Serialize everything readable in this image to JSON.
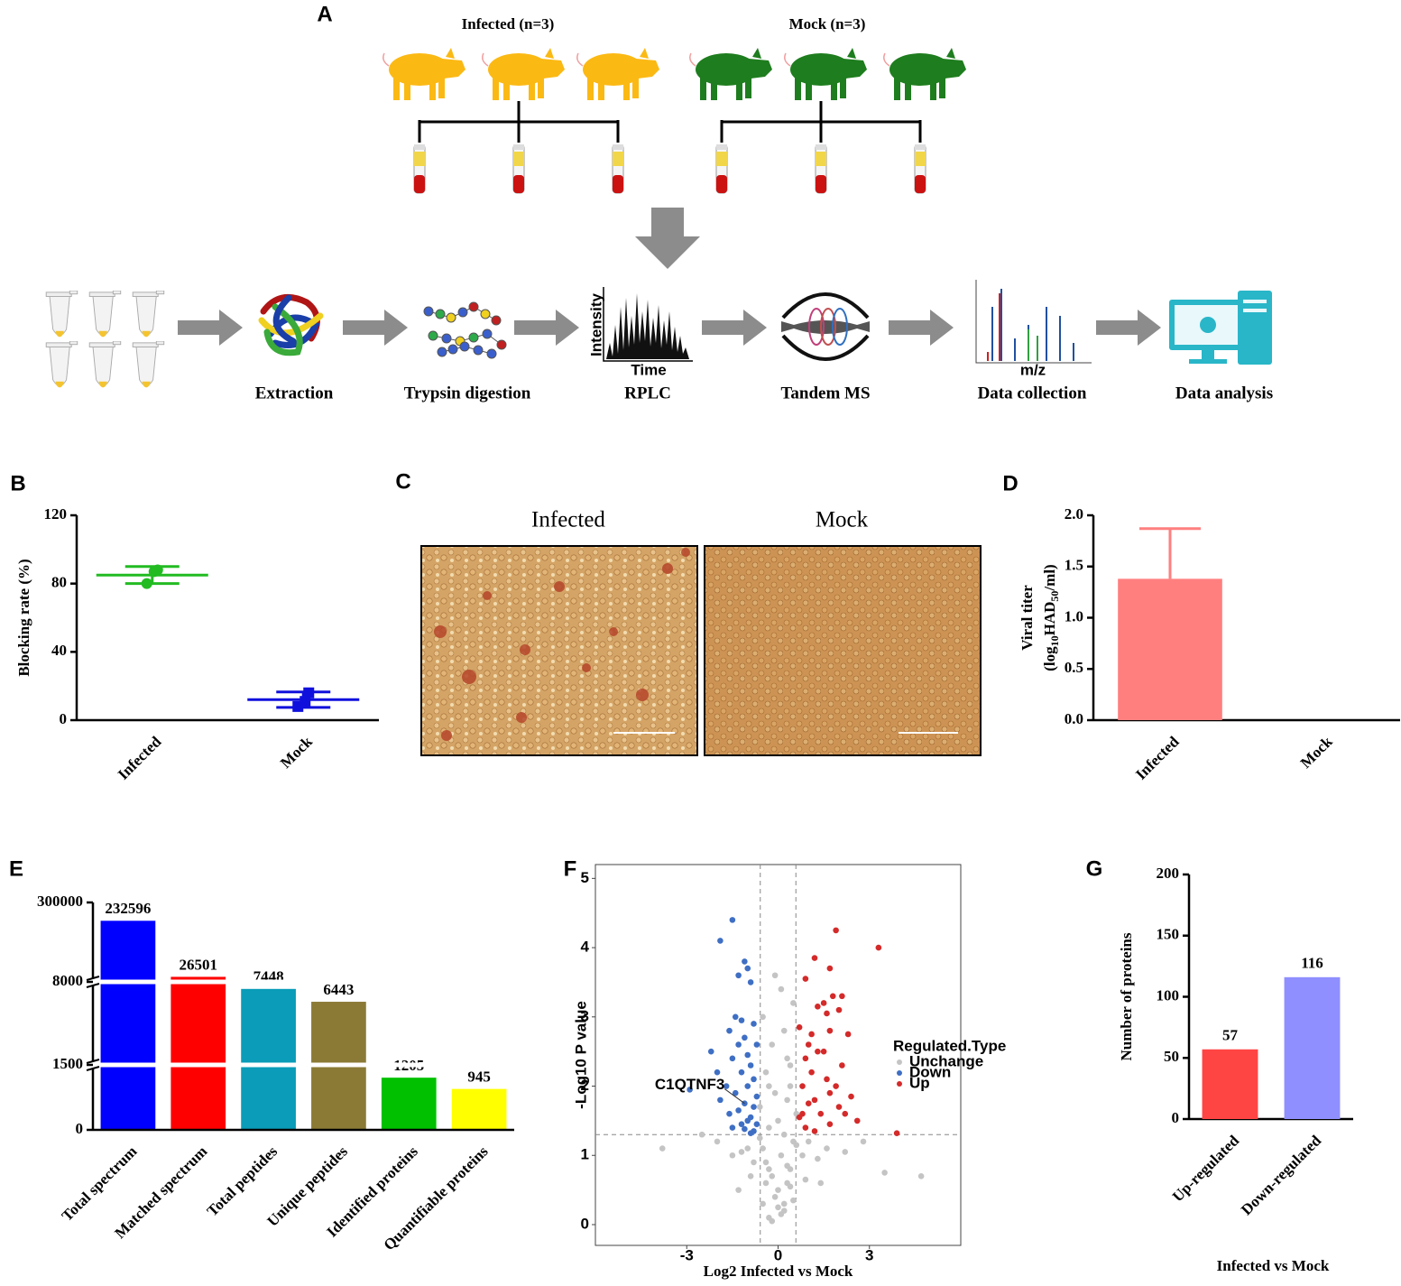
{
  "diagram": {
    "label": "A",
    "groups": [
      "Infected (n=3)",
      "Mock (n=3)"
    ],
    "steps": [
      "Extraction",
      "Trypsin digestion",
      "RPLC",
      "Tandem MS",
      "Data collection",
      "Data analysis"
    ],
    "rplc_axes": [
      "Intensity",
      "Time"
    ],
    "spectrum_axis": "m/z"
  },
  "images": {
    "label": "C",
    "titles": [
      "Infected",
      "Mock"
    ]
  },
  "chart_data": [
    {
      "type": "dot",
      "label": "B",
      "ylabel": "Blocking rate (%)",
      "categories": [
        "Infected",
        "Mock"
      ],
      "points": [
        [
          88,
          87,
          80
        ],
        [
          16,
          11,
          8
        ]
      ],
      "mean": [
        85,
        12
      ],
      "sd": [
        5,
        4.5
      ],
      "colors": [
        "#22bb22",
        "#1010dd"
      ],
      "markers": [
        "circle",
        "square"
      ],
      "ylim": [
        0,
        120
      ],
      "yticks": [
        0,
        40,
        80,
        120
      ]
    },
    {
      "type": "bar",
      "label": "D",
      "ylabel": [
        "Viral titer",
        [
          "(log",
          "10",
          "HAD",
          "50",
          "/ml)"
        ]
      ],
      "categories": [
        "Infected",
        "Mock"
      ],
      "values": [
        1.38,
        0
      ],
      "errors": [
        0.49,
        0
      ],
      "color": "#ff7f7f",
      "ylim": [
        0,
        2
      ],
      "yticks": [
        {
          "value": 0,
          "label": "0.0"
        },
        {
          "value": 0.5,
          "label": "0.5"
        },
        {
          "value": 1,
          "label": "1.0"
        },
        {
          "value": 1.5,
          "label": "1.5"
        },
        {
          "value": 2,
          "label": "2.0"
        }
      ]
    },
    {
      "type": "broken-bar",
      "label": "E",
      "categories": [
        "Total spectrum",
        "Matched spectrum",
        "Total peptides",
        "Unique peptides",
        "Identified proteins",
        "Quantifiable proteins"
      ],
      "values": [
        232596,
        26501,
        7448,
        6443,
        1205,
        945
      ],
      "colors": [
        "#0000ff",
        "#ff0000",
        "#0a9cb8",
        "#8b7a36",
        "#00c000",
        "#ffff00"
      ],
      "data_labels": true,
      "ylim": [
        0,
        300000
      ],
      "yticks": [
        0,
        1500,
        8000,
        300000
      ]
    },
    {
      "type": "scatter",
      "label": "F",
      "xlabel": "Log2 Infected vs Mock",
      "ylabel": "-Log10 P value",
      "legend_title": "Regulated.Type",
      "xlim": [
        -6,
        6
      ],
      "ylim": [
        -0.3,
        5.2
      ],
      "xticks": [
        -3,
        0,
        3
      ],
      "yticks": [
        0,
        1,
        2,
        3,
        4,
        5
      ],
      "thresholds": {
        "x": [
          -0.585,
          0.585
        ],
        "y": 1.3
      },
      "series": [
        {
          "name": "Unchange",
          "color": "#c4c4c4",
          "x": [
            -0.3,
            0.1,
            0.2,
            -0.1,
            0.0,
            0.3,
            -0.2,
            0.4,
            -0.4,
            0.1,
            -0.5,
            0.5,
            0.2,
            -0.3,
            0.0,
            0.6,
            -0.6,
            0.3,
            -0.1,
            0.4,
            -0.8,
            0.8,
            -1.0,
            1.0,
            -1.2,
            1.3,
            -1.5,
            1.6,
            -2.0,
            2.2,
            -0.4,
            0.3,
            -0.2,
            0.2,
            -0.5,
            0.5,
            0.1,
            -0.1,
            0.4,
            -0.3,
            -3.8,
            4.7,
            3.5,
            -0.5,
            0.5,
            -0.2,
            0.2,
            0.0,
            -0.4,
            0.4,
            -0.3,
            0.3,
            -0.6,
            0.6,
            -0.9,
            0.9,
            -1.3,
            1.4,
            -2.5,
            2.8
          ],
          "y": [
            0.1,
            0.15,
            0.3,
            0.4,
            0.5,
            0.6,
            0.7,
            0.8,
            0.9,
            1.0,
            1.1,
            1.2,
            1.3,
            1.4,
            1.5,
            1.6,
            1.7,
            1.8,
            1.9,
            2.0,
            0.9,
            1.0,
            1.1,
            1.2,
            1.05,
            0.95,
            1.0,
            1.1,
            1.2,
            1.05,
            2.2,
            2.4,
            2.6,
            2.8,
            3.0,
            3.2,
            3.4,
            3.6,
            2.3,
            2.0,
            1.1,
            0.7,
            0.75,
            0.3,
            0.35,
            0.05,
            0.2,
            0.25,
            0.6,
            0.55,
            0.8,
            0.85,
            1.25,
            1.15,
            0.7,
            0.65,
            0.5,
            0.6,
            1.3,
            1.2
          ]
        },
        {
          "name": "Down",
          "color": "#3f6fc4",
          "x": [
            -1.5,
            -1.9,
            -1.1,
            -1.0,
            -1.3,
            -0.9,
            -1.4,
            -1.2,
            -0.8,
            -1.6,
            -1.1,
            -1.3,
            -0.7,
            -2.2,
            -1.0,
            -1.5,
            -0.9,
            -2.9,
            -1.2,
            -0.8,
            -1.7,
            -1.0,
            -1.4,
            -0.7,
            -1.9,
            -1.1,
            -0.8,
            -1.3,
            -1.6,
            -0.9,
            -1.0,
            -0.7,
            -1.2,
            -1.5,
            -0.8,
            -2.0,
            -1.1,
            -0.9
          ],
          "y": [
            4.4,
            4.1,
            3.8,
            3.7,
            3.6,
            3.5,
            3.0,
            2.95,
            2.9,
            2.8,
            2.7,
            2.6,
            2.6,
            2.5,
            2.45,
            2.4,
            2.3,
            1.95,
            2.2,
            2.1,
            2.0,
            2.0,
            1.9,
            1.85,
            1.8,
            1.75,
            1.7,
            1.65,
            1.6,
            1.55,
            1.5,
            1.45,
            1.45,
            1.4,
            1.35,
            2.2,
            1.38,
            1.32
          ]
        },
        {
          "name": "Up",
          "color": "#d42a2a",
          "x": [
            1.9,
            3.3,
            1.2,
            1.7,
            0.9,
            1.8,
            1.5,
            1.3,
            2.1,
            2.0,
            1.6,
            0.7,
            1.7,
            1.1,
            2.3,
            1.0,
            1.3,
            1.5,
            0.9,
            2.1,
            1.1,
            1.6,
            0.8,
            1.7,
            2.4,
            1.2,
            2.0,
            0.8,
            1.4,
            2.6,
            1.7,
            3.9,
            0.9,
            1.2,
            0.7,
            1.9,
            1.0,
            2.2
          ],
          "y": [
            4.25,
            4.0,
            3.85,
            3.7,
            3.55,
            3.3,
            3.2,
            3.15,
            3.3,
            3.1,
            3.05,
            2.85,
            2.8,
            2.75,
            2.75,
            2.6,
            2.5,
            2.5,
            2.4,
            2.3,
            2.2,
            2.1,
            2.0,
            1.9,
            1.85,
            1.8,
            1.7,
            1.6,
            1.6,
            1.5,
            1.45,
            1.32,
            1.4,
            1.35,
            1.55,
            2.0,
            1.75,
            1.6
          ]
        }
      ],
      "annotations": [
        {
          "text": "C1QTNF3",
          "x": -1.1,
          "y": 1.75
        }
      ]
    },
    {
      "type": "bar",
      "label": "G",
      "ylabel": "Number of proteins",
      "xlabel": "Infected vs Mock",
      "categories": [
        "Up-regulated",
        "Down-regulated"
      ],
      "values": [
        57,
        116
      ],
      "colors": [
        "#ff4444",
        "#8f8fff"
      ],
      "data_labels": true,
      "ylim": [
        0,
        200
      ],
      "yticks": [
        0,
        50,
        100,
        150,
        200
      ]
    }
  ]
}
